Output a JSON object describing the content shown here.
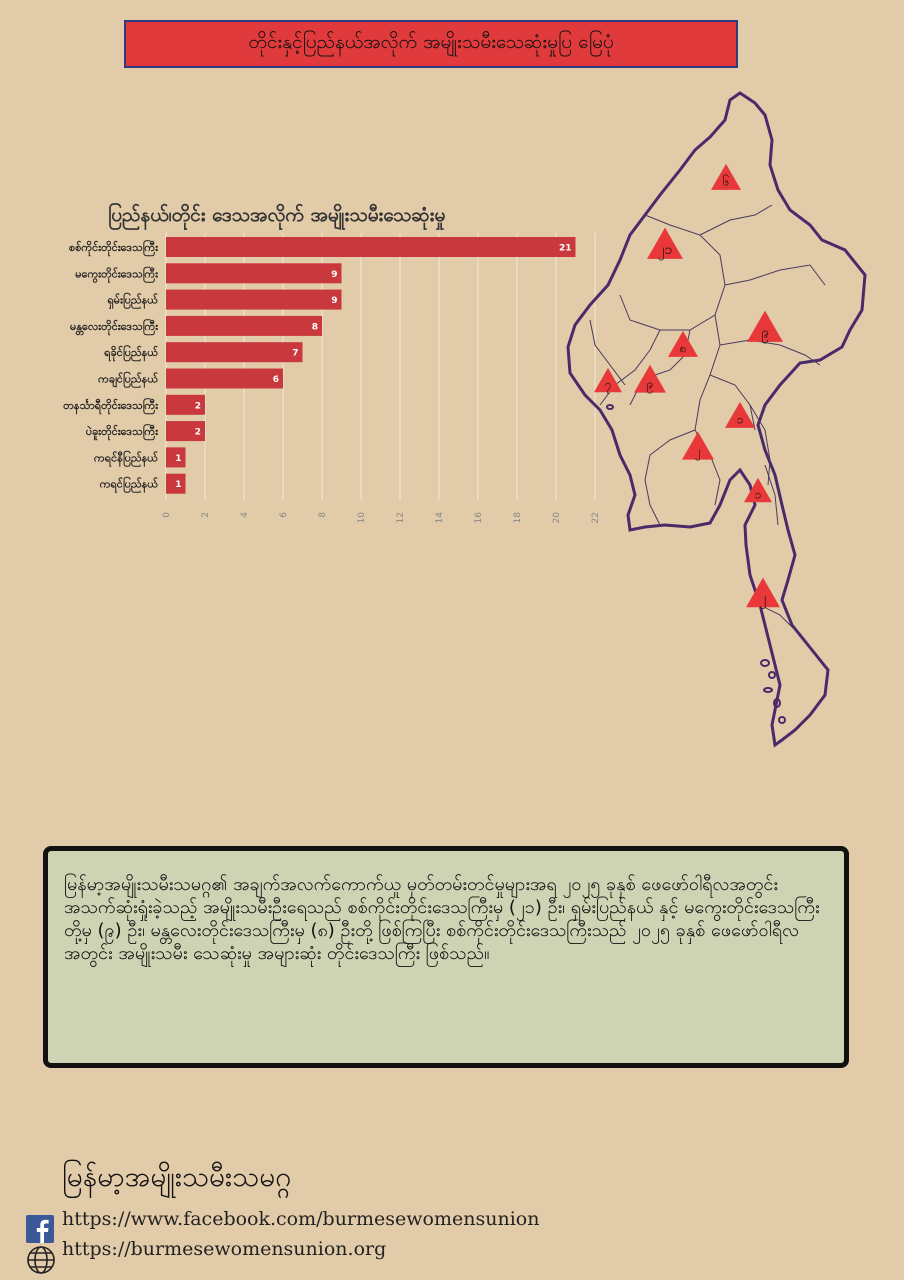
{
  "header": {
    "title": "တိုင်းနှင့်ပြည်နယ်အလိုက် အမျိုးသမီးသေဆုံးမှုပြ မြေပုံ"
  },
  "chart_data": {
    "type": "bar",
    "orientation": "horizontal",
    "title": "ပြည်နယ်၊တိုင်း ဒေသအလိုက် အမျိုးသမီးသေဆုံးမှု",
    "categories": [
      "စစ်ကိုင်းတိုင်းဒေသကြီး",
      "မကွေးတိုင်းဒေသကြီး",
      "ရှမ်းပြည်နယ်",
      "မန္တလေးတိုင်းဒေသကြီး",
      "ရခိုင်ပြည်နယ်",
      "ကချင်ပြည်နယ်",
      "တနင်္သာရီတိုင်းဒေသကြီး",
      "ပဲခူးတိုင်းဒေသကြီး",
      "ကရင်နီပြည်နယ်",
      "ကရင်ပြည်နယ်"
    ],
    "values": [
      21,
      9,
      9,
      8,
      7,
      6,
      2,
      2,
      1,
      1
    ],
    "xlim": [
      0,
      22
    ],
    "xticks": [
      0,
      2,
      4,
      6,
      8,
      10,
      12,
      14,
      16,
      18,
      20,
      22
    ],
    "grid": true,
    "bar_color": "#c8383c"
  },
  "map": {
    "markers": [
      "၆",
      "၂၁",
      "၉",
      "၈",
      "၇",
      "၉",
      "၁",
      "၂",
      "၁",
      "၂"
    ],
    "marker_color": "#e8383a",
    "outline_color": "#4a2a6a"
  },
  "summary": {
    "text": "မြန်မာ့အမျိုးသမီးသမဂ္ဂ၏ အချက်အလက်ကောက်ယူ မှတ်တမ်းတင်မှုများအရ ၂၀၂၅ ခုနှစ် ဖေဖော်ဝါရီလအတွင်း အသက်ဆုံးရှုံးခဲ့သည့် အမျိုးသမီးဦးရေသည် စစ်ကိုင်းတိုင်းဒေသကြီးမှ (၂၁) ဦး၊ ရှမ်းပြည်နယ် နှင့် မကွေးတိုင်းဒေသကြီးတို့မှ (၉) ဦး၊ မန္တလေးတိုင်းဒေသကြီးမှ (၈) ဦးတို့ ဖြစ်ကြပြီး စစ်ကိုင်းတိုင်းဒေသကြီးသည် ၂၀၂၅ ခုနှစ် ဖေဖော်ဝါရီလ အတွင်း အမျိုးသမီး သေဆုံးမှု အများဆုံး တိုင်းဒေသကြီး ဖြစ်သည်။"
  },
  "footer": {
    "org_name": "မြန်မာ့အမျိုးသမီးသမဂ္ဂ",
    "facebook": "https://www.facebook.com/burmesewomensunion",
    "website": "https://burmesewomensunion.org",
    "facebook_icon": "facebook-icon",
    "web_icon": "globe-icon",
    "facebook_color": "#3b5998"
  }
}
